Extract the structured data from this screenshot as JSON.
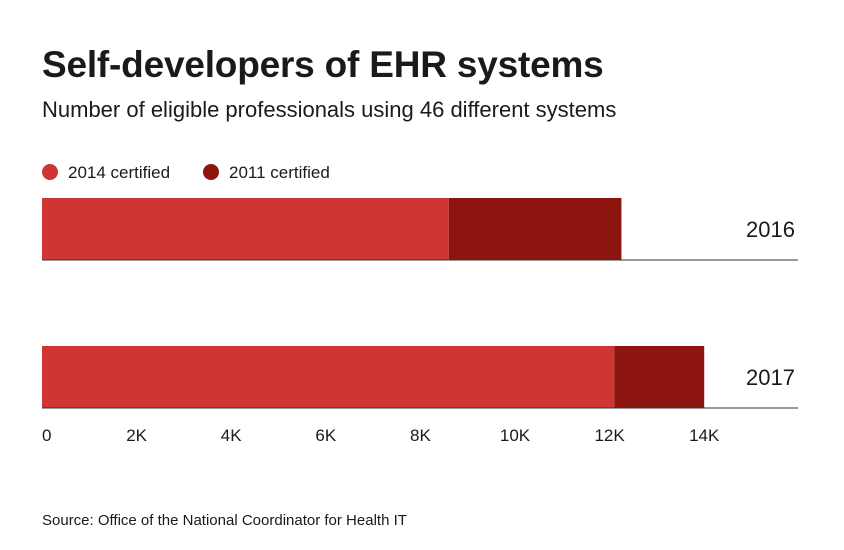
{
  "title": "Self-developers of EHR systems",
  "subtitle": "Number of eligible professionals using 46 different systems",
  "source": "Source: Office of the National Coordinator for Health IT",
  "colors": {
    "series_2014": "#cf3535",
    "series_2011": "#8c1510",
    "baseline": "#333333",
    "text": "#1a1a1a"
  },
  "chart_data": {
    "type": "bar",
    "orientation": "horizontal",
    "stacked": true,
    "categories": [
      "2016",
      "2017"
    ],
    "series": [
      {
        "name": "2014 certified",
        "values": [
          8600,
          12100
        ]
      },
      {
        "name": "2011 certified",
        "values": [
          3650,
          1900
        ]
      }
    ],
    "xlim": [
      0,
      16000
    ],
    "xticks": [
      0,
      2000,
      4000,
      6000,
      8000,
      10000,
      12000,
      14000
    ],
    "xtick_labels": [
      "0",
      "2K",
      "4K",
      "6K",
      "8K",
      "10K",
      "12K",
      "14K"
    ],
    "grid": false,
    "legend": "top-left"
  }
}
